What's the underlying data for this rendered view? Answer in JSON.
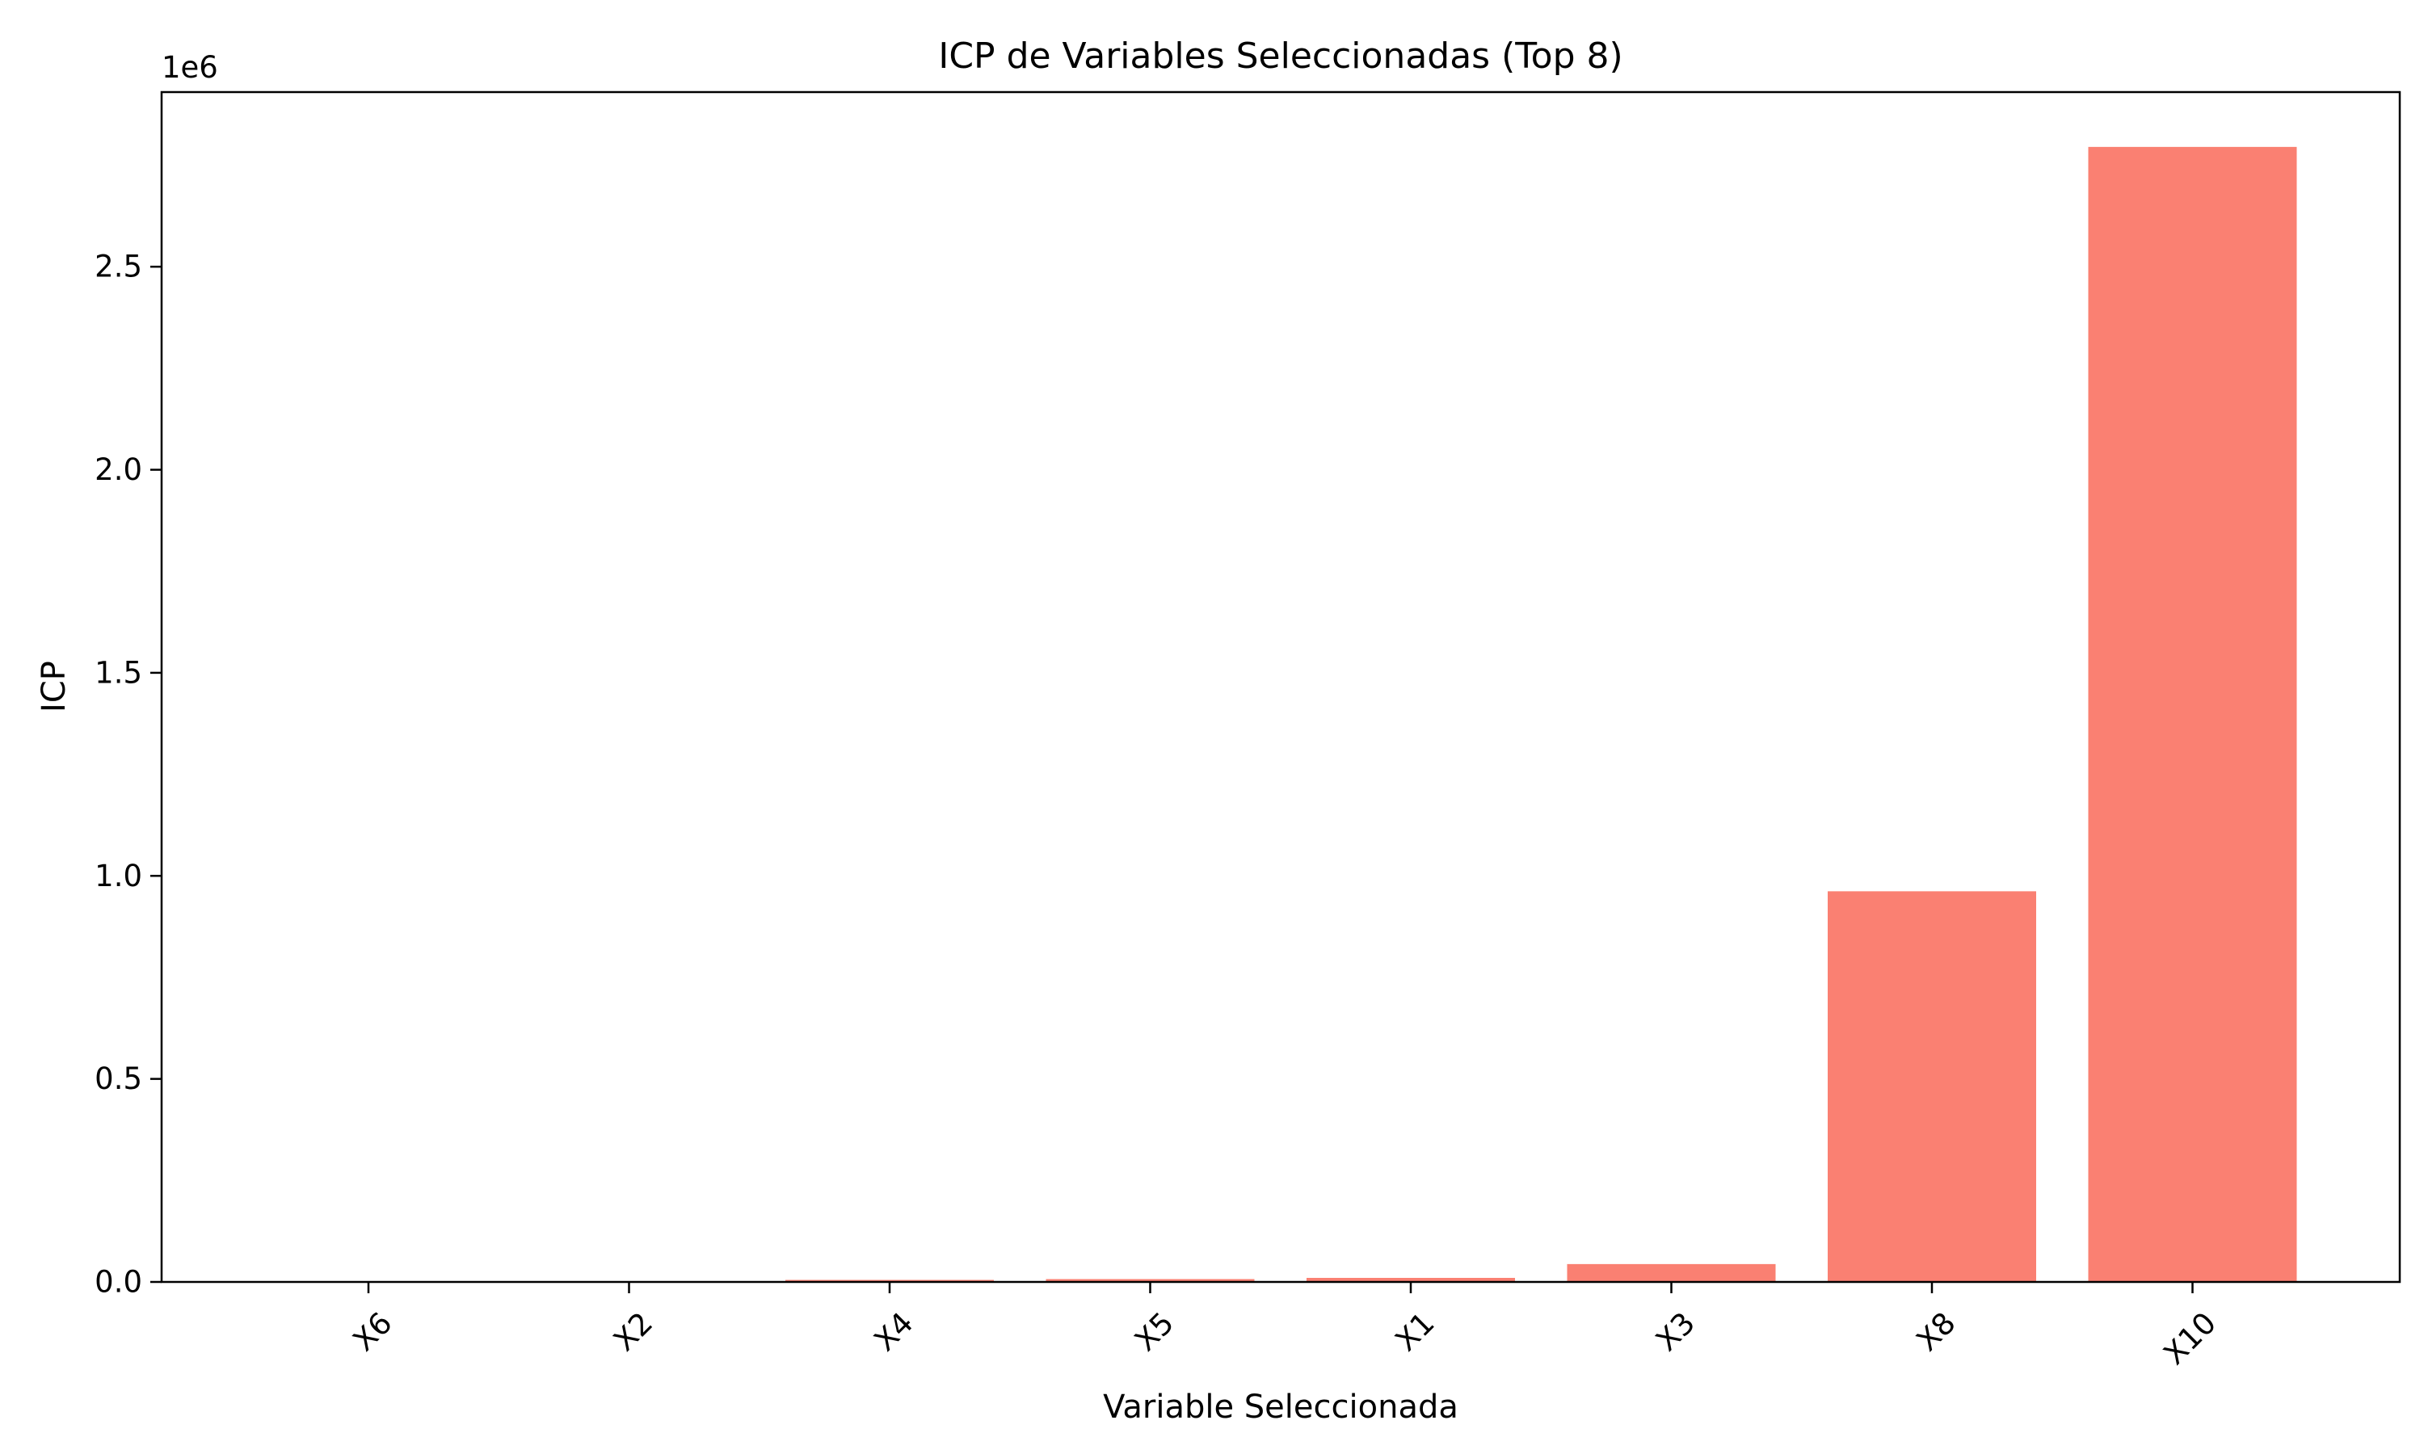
{
  "chart_data": {
    "type": "bar",
    "title": "ICP de Variables Seleccionadas (Top 8)",
    "xlabel": "Variable Seleccionada",
    "ylabel": "ICP",
    "y_offset_label": "1e6",
    "y_multiplier": 1000000,
    "categories": [
      "X6",
      "X2",
      "X4",
      "X5",
      "X1",
      "X3",
      "X8",
      "X10"
    ],
    "values": [
      500,
      1500,
      5000,
      7000,
      10000,
      44000,
      962000,
      2795000
    ],
    "ylim": [
      0,
      2930000
    ],
    "y_ticks": [
      0,
      500000,
      1000000,
      1500000,
      2000000,
      2500000
    ],
    "y_tick_labels": [
      "0.0",
      "0.5",
      "1.0",
      "1.5",
      "2.0",
      "2.5"
    ],
    "bar_color": "#fa8072",
    "grid": false,
    "x_tick_rotation_deg": 45
  }
}
